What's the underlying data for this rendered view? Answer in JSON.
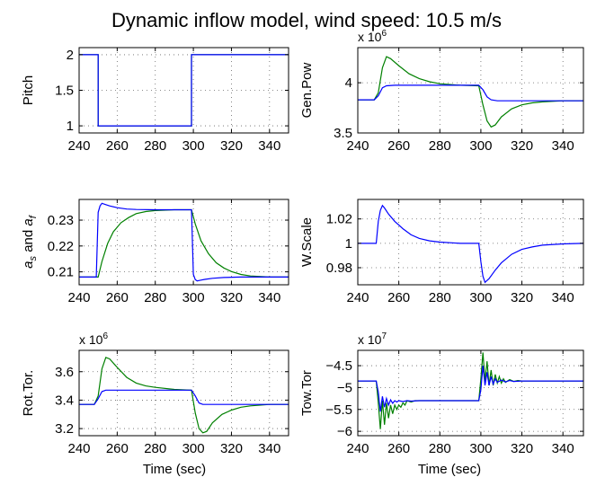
{
  "figure": {
    "title": "Dynamic inflow model, wind speed: 10.5 m/s",
    "colors": {
      "green": "#008000",
      "blue": "#0000ff"
    }
  },
  "chart_data": [
    {
      "type": "line",
      "ylabel": "Pitch",
      "multiplier": "",
      "xlim": [
        240,
        350
      ],
      "ylim": [
        0.9,
        2.1
      ],
      "xticks": [
        240,
        260,
        280,
        300,
        320,
        340
      ],
      "yticks": [
        {
          "v": 1,
          "label": "1"
        },
        {
          "v": 1.5,
          "label": "1.5"
        },
        {
          "v": 2,
          "label": "2"
        }
      ],
      "series": [
        {
          "color": "#008000",
          "x": [
            240,
            250,
            250,
            299,
            299,
            350
          ],
          "y": [
            2,
            2,
            1,
            1,
            2,
            2
          ]
        },
        {
          "color": "#0000ff",
          "x": [
            240,
            250,
            250,
            299,
            299,
            350
          ],
          "y": [
            2,
            2,
            1,
            1,
            2,
            2
          ]
        }
      ]
    },
    {
      "type": "line",
      "ylabel": "Gen.Pow",
      "multiplier": "x 10",
      "multiplier_exp": "6",
      "xlim": [
        240,
        350
      ],
      "ylim": [
        3.5,
        4.35
      ],
      "xticks": [
        240,
        260,
        280,
        300,
        320,
        340
      ],
      "yticks": [
        {
          "v": 3.5,
          "label": "3.5"
        },
        {
          "v": 4,
          "label": "4"
        }
      ],
      "series": [
        {
          "color": "#008000",
          "x": [
            240,
            248,
            250,
            252,
            254,
            256,
            260,
            265,
            270,
            275,
            280,
            290,
            299,
            301,
            303,
            305,
            307,
            310,
            315,
            320,
            325,
            330,
            340,
            350
          ],
          "y": [
            3.83,
            3.83,
            3.9,
            4.15,
            4.26,
            4.24,
            4.17,
            4.09,
            4.04,
            4.01,
            3.99,
            3.975,
            3.97,
            3.78,
            3.62,
            3.56,
            3.58,
            3.66,
            3.74,
            3.78,
            3.8,
            3.81,
            3.82,
            3.82
          ]
        },
        {
          "color": "#0000ff",
          "x": [
            240,
            248,
            250,
            252,
            254,
            258,
            265,
            280,
            299,
            301,
            303,
            305,
            308,
            315,
            330,
            350
          ],
          "y": [
            3.83,
            3.83,
            3.87,
            3.95,
            3.97,
            3.975,
            3.975,
            3.975,
            3.975,
            3.93,
            3.86,
            3.83,
            3.82,
            3.82,
            3.82,
            3.82
          ]
        }
      ]
    },
    {
      "type": "line",
      "ylabel": "a_s and a_f",
      "multiplier": "",
      "xlim": [
        240,
        350
      ],
      "ylim": [
        0.205,
        0.238
      ],
      "xticks": [
        240,
        260,
        280,
        300,
        320,
        340
      ],
      "yticks": [
        {
          "v": 0.21,
          "label": "0.21"
        },
        {
          "v": 0.22,
          "label": "0.22"
        },
        {
          "v": 0.23,
          "label": "0.23"
        }
      ],
      "series": [
        {
          "color": "#008000",
          "x": [
            240,
            250,
            252,
            255,
            258,
            262,
            266,
            270,
            275,
            280,
            290,
            299,
            301,
            304,
            308,
            312,
            316,
            320,
            325,
            330,
            340,
            350
          ],
          "y": [
            0.208,
            0.208,
            0.214,
            0.221,
            0.2255,
            0.229,
            0.231,
            0.2325,
            0.2333,
            0.2337,
            0.234,
            0.234,
            0.2285,
            0.222,
            0.217,
            0.2135,
            0.2115,
            0.2101,
            0.209,
            0.2084,
            0.208,
            0.208
          ]
        },
        {
          "color": "#0000ff",
          "x": [
            240,
            249,
            250,
            251,
            252,
            254,
            256,
            260,
            265,
            270,
            280,
            299,
            300,
            301,
            302,
            304,
            306,
            310,
            316,
            325,
            350
          ],
          "y": [
            0.208,
            0.208,
            0.233,
            0.2355,
            0.2365,
            0.236,
            0.2355,
            0.2348,
            0.2343,
            0.2341,
            0.234,
            0.234,
            0.209,
            0.207,
            0.2065,
            0.2068,
            0.2071,
            0.2075,
            0.2078,
            0.208,
            0.208
          ]
        }
      ]
    },
    {
      "type": "line",
      "ylabel": "W.Scale",
      "multiplier": "",
      "xlim": [
        240,
        350
      ],
      "ylim": [
        0.966,
        1.036
      ],
      "xticks": [
        240,
        260,
        280,
        300,
        320,
        340
      ],
      "yticks": [
        {
          "v": 0.98,
          "label": "0.98"
        },
        {
          "v": 1,
          "label": "1"
        },
        {
          "v": 1.02,
          "label": "1.02"
        }
      ],
      "series": [
        {
          "color": "#0000ff",
          "x": [
            240,
            249,
            250,
            251,
            252,
            253,
            255,
            258,
            262,
            266,
            270,
            275,
            280,
            290,
            299,
            300,
            301,
            302,
            304,
            307,
            310,
            315,
            320,
            325,
            330,
            340,
            350
          ],
          "y": [
            1,
            1,
            1.018,
            1.027,
            1.031,
            1.029,
            1.024,
            1.018,
            1.012,
            1.007,
            1.004,
            1.002,
            1.001,
            1,
            1,
            0.985,
            0.973,
            0.968,
            0.971,
            0.978,
            0.984,
            0.991,
            0.995,
            0.997,
            0.9985,
            0.9995,
            1
          ]
        }
      ]
    },
    {
      "type": "line",
      "ylabel": "Rot.Tor.",
      "multiplier": "x 10",
      "multiplier_exp": "6",
      "xlim": [
        240,
        350
      ],
      "ylim": [
        3.15,
        3.75
      ],
      "xticks": [
        240,
        260,
        280,
        300,
        320,
        340
      ],
      "yticks": [
        {
          "v": 3.2,
          "label": "3.2"
        },
        {
          "v": 3.4,
          "label": "3.4"
        },
        {
          "v": 3.6,
          "label": "3.6"
        }
      ],
      "series": [
        {
          "color": "#008000",
          "x": [
            240,
            248,
            250,
            252,
            254,
            256,
            260,
            265,
            270,
            275,
            280,
            290,
            299,
            301,
            303,
            305,
            307,
            310,
            315,
            320,
            325,
            330,
            340,
            350
          ],
          "y": [
            3.37,
            3.37,
            3.43,
            3.62,
            3.7,
            3.69,
            3.63,
            3.56,
            3.52,
            3.5,
            3.49,
            3.475,
            3.47,
            3.31,
            3.2,
            3.17,
            3.18,
            3.24,
            3.3,
            3.33,
            3.35,
            3.36,
            3.37,
            3.37
          ]
        },
        {
          "color": "#0000ff",
          "x": [
            240,
            248,
            250,
            252,
            254,
            258,
            265,
            280,
            299,
            301,
            303,
            305,
            308,
            315,
            330,
            350
          ],
          "y": [
            3.37,
            3.37,
            3.41,
            3.46,
            3.47,
            3.47,
            3.47,
            3.47,
            3.47,
            3.43,
            3.38,
            3.37,
            3.37,
            3.37,
            3.37,
            3.37
          ]
        }
      ]
    },
    {
      "type": "line",
      "ylabel": "Tow.Tor",
      "multiplier": "x 10",
      "multiplier_exp": "7",
      "xlim": [
        240,
        350
      ],
      "ylim": [
        -6.1,
        -4.15
      ],
      "xticks": [
        240,
        260,
        280,
        300,
        320,
        340
      ],
      "yticks": [
        {
          "v": -6,
          "label": "−6"
        },
        {
          "v": -5.5,
          "label": "−5.5"
        },
        {
          "v": -5,
          "label": "−5"
        },
        {
          "v": -4.5,
          "label": "−4.5"
        }
      ],
      "series": [
        {
          "color": "#008000",
          "x": [
            240,
            249,
            250,
            251,
            252,
            253,
            254,
            255,
            256,
            257,
            258,
            259,
            260,
            261,
            262,
            263,
            264,
            266,
            268,
            270,
            275,
            280,
            290,
            299,
            300,
            301,
            302,
            303,
            304,
            305,
            306,
            307,
            308,
            309,
            310,
            311,
            312,
            314,
            316,
            318,
            320,
            325,
            330,
            340,
            350
          ],
          "y": [
            -4.85,
            -4.85,
            -5.35,
            -5.95,
            -5.3,
            -5.85,
            -5.35,
            -5.7,
            -5.4,
            -5.6,
            -5.4,
            -5.5,
            -5.4,
            -5.45,
            -5.35,
            -5.4,
            -5.3,
            -5.33,
            -5.3,
            -5.3,
            -5.3,
            -5.3,
            -5.3,
            -5.3,
            -4.8,
            -4.2,
            -4.85,
            -4.4,
            -4.95,
            -4.6,
            -4.95,
            -4.7,
            -4.9,
            -4.75,
            -4.9,
            -4.8,
            -4.88,
            -4.82,
            -4.86,
            -4.84,
            -4.85,
            -4.85,
            -4.85,
            -4.85,
            -4.85
          ]
        },
        {
          "color": "#0000ff",
          "x": [
            240,
            249,
            250,
            251,
            252,
            253,
            254,
            255,
            256,
            257,
            258,
            259,
            260,
            262,
            264,
            266,
            270,
            280,
            290,
            299,
            300,
            301,
            302,
            303,
            304,
            305,
            306,
            307,
            308,
            310,
            312,
            314,
            316,
            320,
            330,
            340,
            350
          ],
          "y": [
            -4.85,
            -4.85,
            -5.1,
            -5.55,
            -5.2,
            -5.45,
            -5.25,
            -5.4,
            -5.28,
            -5.36,
            -5.3,
            -5.33,
            -5.3,
            -5.32,
            -5.3,
            -5.31,
            -5.3,
            -5.3,
            -5.3,
            -5.3,
            -5.05,
            -4.5,
            -4.95,
            -4.65,
            -4.95,
            -4.75,
            -4.92,
            -4.8,
            -4.88,
            -4.83,
            -4.87,
            -4.84,
            -4.86,
            -4.85,
            -4.85,
            -4.85,
            -4.85
          ]
        }
      ]
    }
  ],
  "xlabels": {
    "bottom_left": "Time (sec)",
    "bottom_right": "Time (sec)"
  }
}
